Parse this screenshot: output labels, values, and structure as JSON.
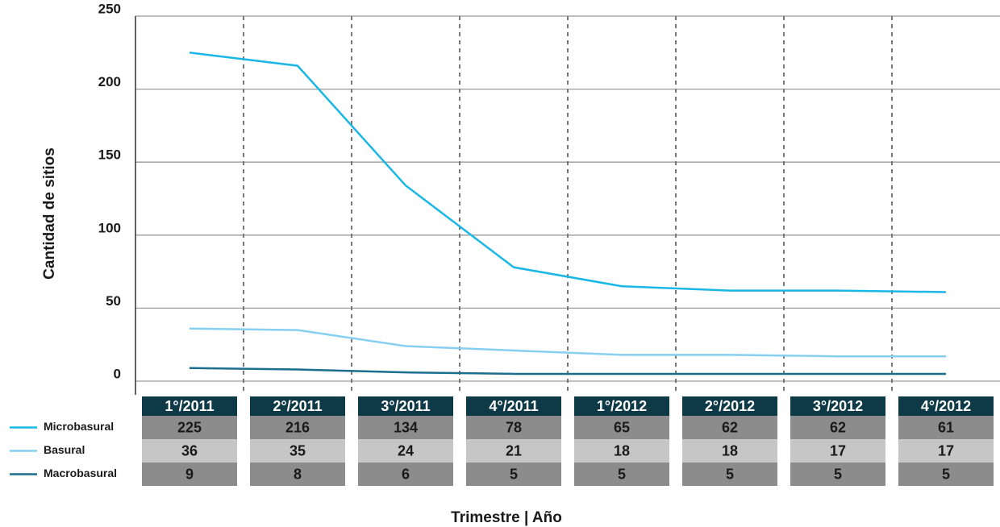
{
  "chart_data": {
    "type": "line",
    "y_label": "Cantidad de sitios",
    "x_label": "Trimestre | Año",
    "categories": [
      "1°/2011",
      "2°/2011",
      "3°/2011",
      "4°/2011",
      "1°/2012",
      "2°/2012",
      "3°/2012",
      "4°/2012"
    ],
    "series": [
      {
        "name": "Microbasural",
        "color": "#1ab7e6",
        "values": [
          225,
          216,
          134,
          78,
          65,
          62,
          62,
          61
        ]
      },
      {
        "name": "Basural",
        "color": "#86cff0",
        "values": [
          36,
          35,
          24,
          21,
          18,
          18,
          17,
          17
        ]
      },
      {
        "name": "Macrobasural",
        "color": "#1a6e8e",
        "values": [
          9,
          8,
          6,
          5,
          5,
          5,
          5,
          5
        ]
      }
    ],
    "ylim": [
      0,
      250
    ],
    "yticks": [
      0,
      50,
      100,
      150,
      200,
      250
    ],
    "grid": true
  }
}
